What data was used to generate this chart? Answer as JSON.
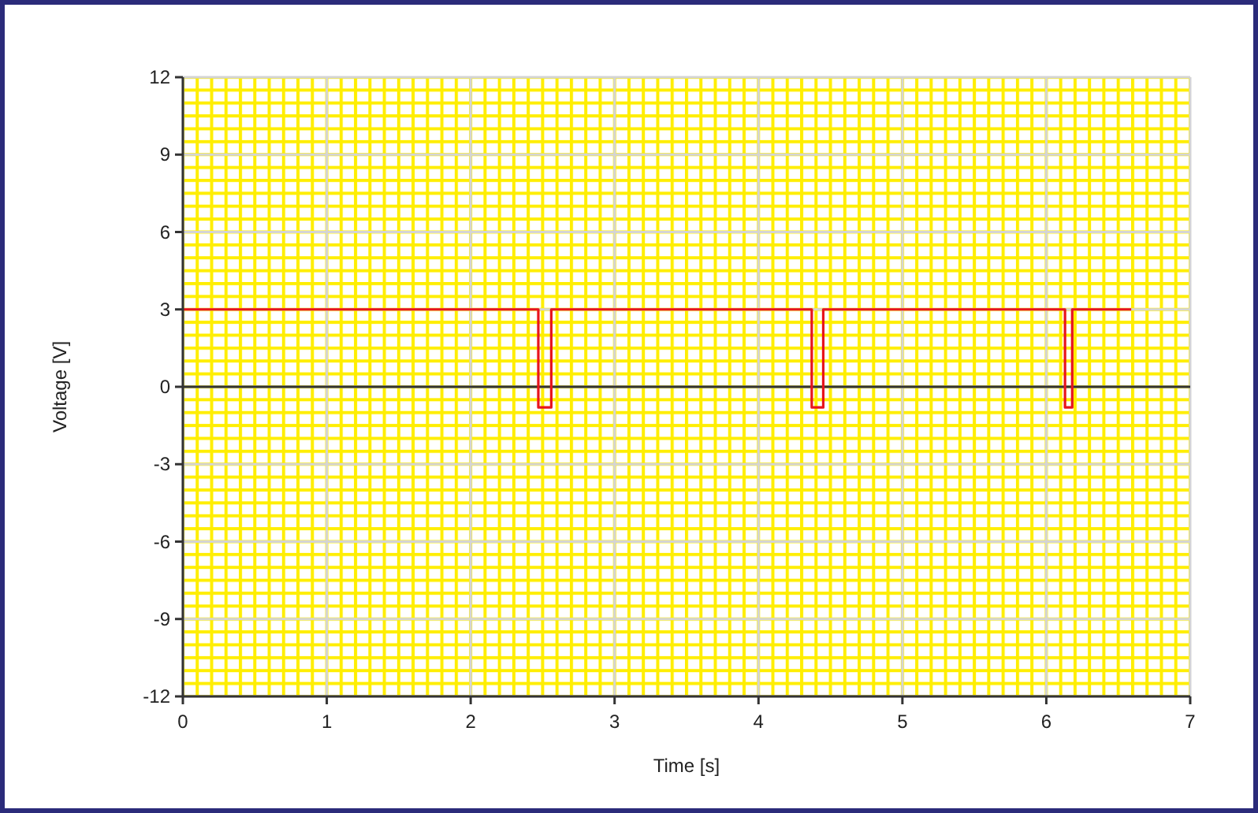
{
  "chart_data": {
    "type": "line",
    "xlabel": "Time [s]",
    "ylabel": "Voltage [V]",
    "xlim": [
      0,
      7
    ],
    "xticks": [
      0,
      1,
      2,
      3,
      4,
      5,
      6,
      7
    ],
    "ylim": [
      -12,
      12
    ],
    "yticks": [
      -12,
      -9,
      -6,
      -3,
      0,
      3,
      6,
      9,
      12
    ],
    "grid": true,
    "ref_lines": [
      {
        "axis": "y",
        "value": 0,
        "color": "#333333"
      }
    ],
    "series": [
      {
        "color": "#e8141c",
        "x": [
          0,
          2.47,
          2.47,
          2.56,
          2.56,
          4.37,
          4.37,
          4.45,
          4.45,
          6.13,
          6.13,
          6.18,
          6.18,
          6.59
        ],
        "values": [
          3,
          3,
          -0.8,
          -0.8,
          3,
          3,
          -0.8,
          -0.8,
          3,
          3,
          -0.8,
          -0.8,
          3,
          3
        ]
      }
    ]
  }
}
